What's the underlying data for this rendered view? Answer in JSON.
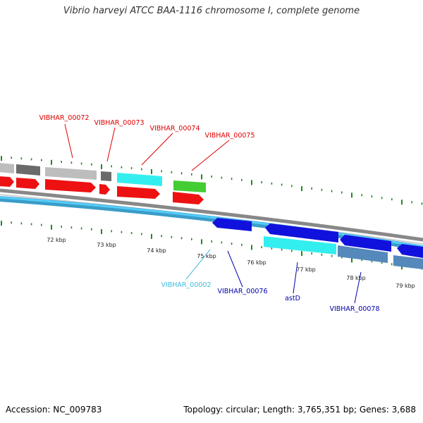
{
  "title": "Vibrio harveyi ATCC BAA-1116 chromosome I, complete genome",
  "footer": {
    "accession": "Accession: NC_009783",
    "summary": "Topology: circular; Length: 3,765,351 bp; Genes: 3,688"
  },
  "colors": {
    "red": "#ee1111",
    "gray": "#bdbdbd",
    "darkgray": "#6a6a6a",
    "cyan": "#33eeee",
    "green": "#44cc33",
    "lightblue": "#44bbee",
    "blue": "#1111dd",
    "steel": "#5588bb",
    "tick": "#228822"
  },
  "kbp_ticks": [
    "72 kbp",
    "73 kbp",
    "74 kbp",
    "75 kbp",
    "76 kbp",
    "77 kbp",
    "78 kbp",
    "79 kbp"
  ],
  "labels": {
    "VIBHAR_00072": "VIBHAR_00072",
    "VIBHAR_00073": "VIBHAR_00073",
    "VIBHAR_00074": "VIBHAR_00074",
    "VIBHAR_00075": "VIBHAR_00075",
    "VIBHAR_00002": "VIBHAR_00002",
    "VIBHAR_00076": "VIBHAR_00076",
    "astD": "astD",
    "VIBHAR_00078": "VIBHAR_00078"
  }
}
